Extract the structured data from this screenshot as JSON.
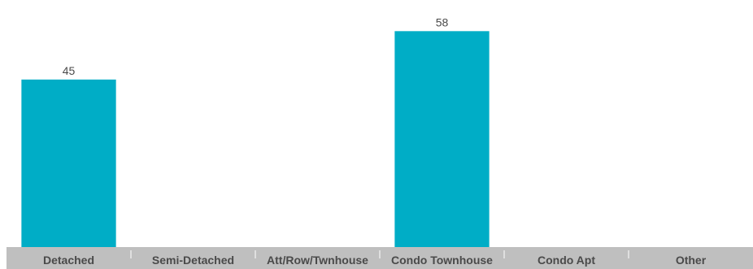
{
  "chart_data": {
    "type": "bar",
    "categories": [
      "Detached",
      "Semi-Detached",
      "Att/Row/Twnhouse",
      "Condo Townhouse",
      "Condo Apt",
      "Other"
    ],
    "values": [
      45,
      null,
      null,
      58,
      null,
      null
    ],
    "value_labels": [
      "45",
      "",
      "",
      "58",
      "",
      ""
    ],
    "ylim": [
      0,
      62
    ],
    "grid": false,
    "bar_color": "#00adc6",
    "axis_band_color": "#bfbfbf"
  }
}
